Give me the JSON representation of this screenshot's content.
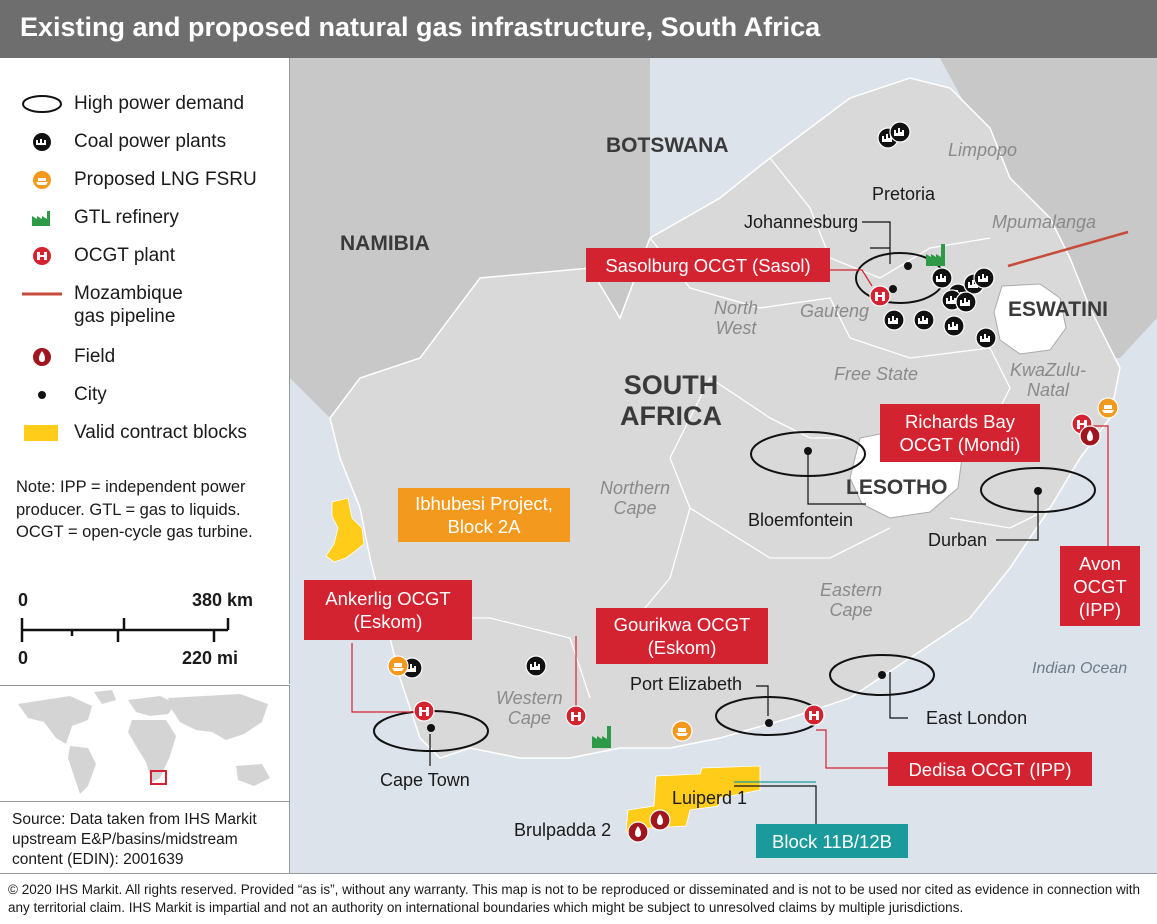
{
  "title": "Existing and proposed natural gas infrastructure, South Africa",
  "legend": {
    "items": [
      {
        "label": "High power demand",
        "icon": "ellipse-icon"
      },
      {
        "label": "Coal power plants",
        "icon": "coal-plant-icon"
      },
      {
        "label": "Proposed LNG FSRU",
        "icon": "lng-fsru-icon"
      },
      {
        "label": "GTL refinery",
        "icon": "gtl-refinery-icon"
      },
      {
        "label": "OCGT plant",
        "icon": "ocgt-plant-icon"
      },
      {
        "label": "Mozambique\ngas pipeline",
        "icon": "pipeline-icon"
      },
      {
        "label": "Field",
        "icon": "field-icon"
      },
      {
        "label": "City",
        "icon": "city-dot-icon"
      },
      {
        "label": "Valid contract blocks",
        "icon": "contract-block-icon"
      }
    ],
    "note": "Note: IPP = independent power producer. GTL = gas to liquids. OCGT = open-cycle gas turbine.",
    "scale": {
      "top_zero": "0",
      "top_value": "380 km",
      "bottom_zero": "0",
      "bottom_value": "220 mi"
    }
  },
  "source": "Source: Data taken from IHS Markit upstream E&P/basins/midstream content (EDIN): 2001639",
  "footer": "© 2020 IHS Markit. All rights reserved. Provided “as is”, without any warranty. This map is not to be reproduced or disseminated and is not to be used nor cited as evidence in connection with any territorial claim. IHS Markit is impartial and not an authority on international boundaries which might be subject to unresolved claims by multiple jurisdictions.",
  "map": {
    "countries": {
      "botswana": "BOTSWANA",
      "namibia": "NAMIBIA",
      "south_africa": "SOUTH\nAFRICA",
      "eswatini": "ESWATINI",
      "lesotho": "LESOTHO"
    },
    "provinces": {
      "limpopo": "Limpopo",
      "mpumalanga": "Mpumalanga",
      "north_west": "North\nWest",
      "gauteng": "Gauteng",
      "free_state": "Free State",
      "kwazulu_natal": "KwaZulu-\nNatal",
      "northern_cape": "Northern\nCape",
      "eastern_cape": "Eastern\nCape",
      "western_cape": "Western\nCape"
    },
    "ocean": "Indian Ocean",
    "cities": {
      "pretoria": "Pretoria",
      "johannesburg": "Johannesburg",
      "bloemfontein": "Bloemfontein",
      "durban": "Durban",
      "port_elizabeth": "Port Elizabeth",
      "east_london": "East London",
      "cape_town": "Cape Town"
    },
    "fields": {
      "luiperd": "Luiperd 1",
      "brulpadda": "Brulpadda 2"
    },
    "callouts": {
      "sasolburg": "Sasolburg OCGT (Sasol)",
      "richards_bay": "Richards Bay\nOCGT (Mondi)",
      "ibhubesi": "Ibhubesi Project,\nBlock 2A",
      "avon": "Avon\nOCGT\n(IPP)",
      "ankerlig": "Ankerlig OCGT\n(Eskom)",
      "gourikwa": "Gourikwa OCGT\n(Eskom)",
      "dedisa": "Dedisa OCGT (IPP)",
      "block11b": "Block 11B/12B"
    },
    "colors": {
      "ocgt_red": "#d32230",
      "lng_orange": "#f39a1e",
      "gtl_green": "#2e9a48",
      "block_yellow": "#ffcc1a",
      "teal": "#1a9a9a",
      "pipeline": "#c84b3a",
      "land_sa": "#d8d8d8",
      "land_other": "#c8c8c8",
      "ocean": "#dde3ea"
    }
  }
}
